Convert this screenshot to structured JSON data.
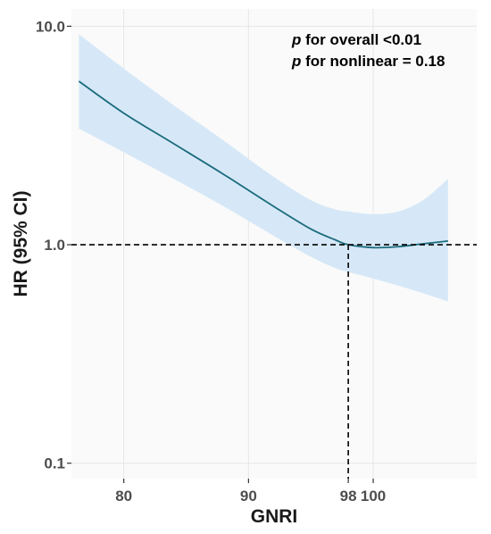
{
  "chart_data": {
    "type": "line",
    "xlabel": "GNRI",
    "ylabel": "HR (95% CI)",
    "xlim": [
      75.8,
      108.3
    ],
    "ylim": [
      0.085,
      12.0
    ],
    "y_scale": "log10",
    "x_ticks": [
      {
        "value": 80,
        "label": "80"
      },
      {
        "value": 90,
        "label": "90"
      },
      {
        "value": 98,
        "label": "98"
      },
      {
        "value": 100,
        "label": "100"
      }
    ],
    "x_gridlines": [
      80,
      90,
      100
    ],
    "y_ticks": [
      {
        "value": 0.1,
        "label": "0.1"
      },
      {
        "value": 1.0,
        "label": "1.0"
      },
      {
        "value": 10.0,
        "label": "10.0"
      }
    ],
    "grid": true,
    "annotations": [
      {
        "italic": "p",
        "text": " for overall <0.01"
      },
      {
        "italic": "p",
        "text": " for nonlinear = 0.18"
      }
    ],
    "reference_lines": {
      "hr": 1.0,
      "gnri": 98
    },
    "colors": {
      "line": "#1a6b7d",
      "ci_band": "#d6e8f7",
      "panel": "#fafafa",
      "grid": "#e6e6e6",
      "reference": "#000000"
    },
    "series": [
      {
        "x": [
          76.4,
          80.0,
          84.0,
          88.0,
          92.0,
          95.0,
          97.0,
          98.0,
          100.0,
          102.0,
          104.0,
          106.0
        ],
        "hr": [
          5.6,
          4.0,
          2.9,
          2.1,
          1.5,
          1.18,
          1.05,
          1.0,
          0.97,
          0.98,
          1.01,
          1.04
        ],
        "lower": [
          3.4,
          2.65,
          2.0,
          1.5,
          1.1,
          0.88,
          0.78,
          0.75,
          0.7,
          0.65,
          0.6,
          0.55
        ],
        "upper": [
          9.2,
          6.4,
          4.35,
          3.0,
          2.05,
          1.6,
          1.45,
          1.42,
          1.38,
          1.42,
          1.6,
          2.0
        ]
      }
    ]
  }
}
